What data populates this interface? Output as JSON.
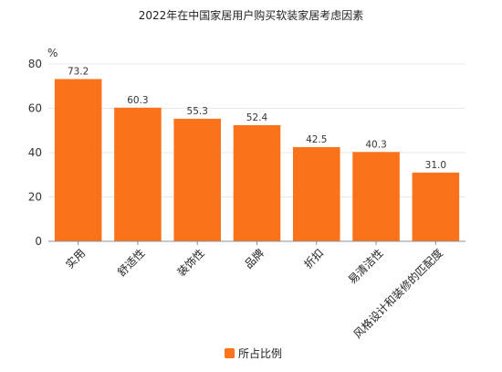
{
  "chart_data": {
    "type": "bar",
    "title": "2022年在中国家居用户购买软装家居考虑因素",
    "y_unit": "%",
    "categories": [
      "实用",
      "舒适性",
      "装饰性",
      "品牌",
      "折扣",
      "易清洁性",
      "风格设计和装修的匹配度"
    ],
    "series": [
      {
        "name": "所占比例",
        "values": [
          73.2,
          60.3,
          55.3,
          52.4,
          42.5,
          40.3,
          31.0
        ],
        "value_labels": [
          "73.2",
          "60.3",
          "55.3",
          "52.4",
          "42.5",
          "40.3",
          "31.0"
        ],
        "color": "#FA731A"
      }
    ],
    "ylim": [
      0,
      80
    ],
    "y_ticks": [
      0,
      20,
      40,
      60,
      80
    ],
    "grid": true,
    "legend_position": "bottom-center"
  }
}
